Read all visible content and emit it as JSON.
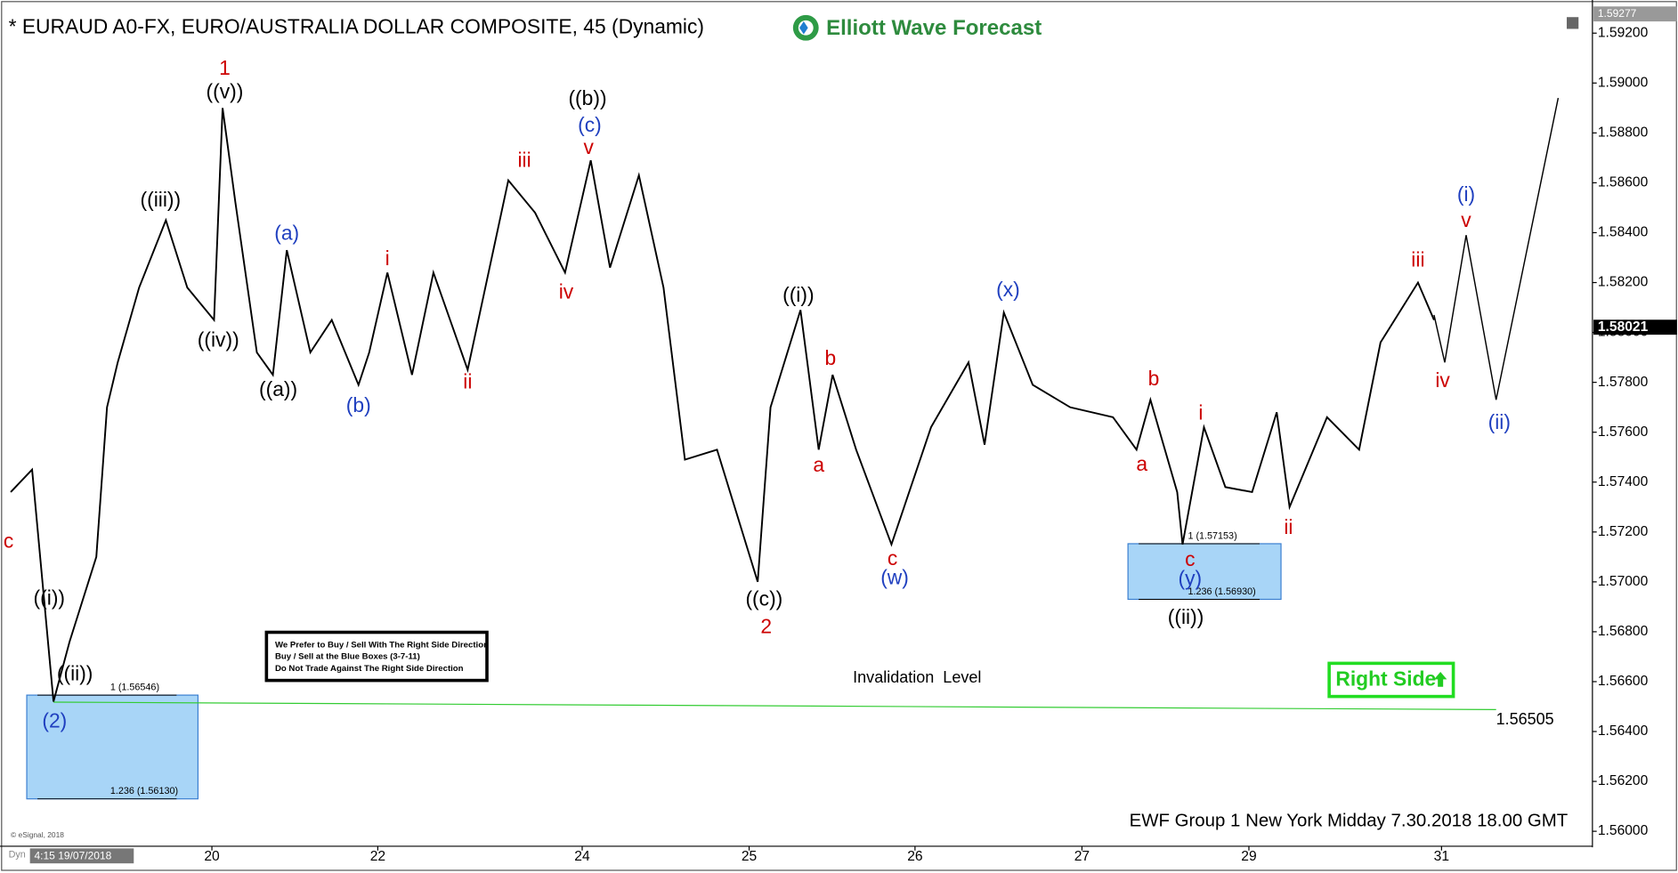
{
  "chart_data": {
    "type": "line",
    "title": "* EURAUD A0-FX, EURO/AUSTRALIA DOLLAR COMPOSITE, 45 (Dynamic)",
    "logo_text": "Elliott Wave Forecast",
    "footer": "EWF Group 1 New York Midday 7.30.2018 18.00 GMT",
    "copyright": "© eSignal, 2018",
    "cursor_label": "4:15 19/07/2018",
    "corner_label": "Dyn",
    "note_lines": [
      "We Prefer to Buy / Sell With The Right Side Direction",
      "Buy / Sell at the Blue Boxes (3-7-11)",
      "Do Not Trade Against The Right Side Direction"
    ],
    "right_side_label": "Right Side",
    "invalidation": {
      "text": "Invalidation  Level",
      "value": 1.56505,
      "color": "#33cc33"
    },
    "price_tags": [
      {
        "value": 1.59277,
        "label": "1.59277"
      },
      {
        "value": 1.58021,
        "label": "1.58021"
      }
    ],
    "zones": [
      {
        "top": 1.56546,
        "top_label": "1 (1.56546)",
        "bottom": 1.5613,
        "bottom_label": "1.236 (1.56130)"
      },
      {
        "top": 1.57153,
        "top_label": "1 (1.57153)",
        "bottom": 1.5693,
        "bottom_label": "1.236 (1.56930)"
      }
    ],
    "zone_color": "#a8d5f7",
    "series": [
      {
        "color": "#000000",
        "x": [
          10,
          30,
          50,
          65,
          90,
          100,
          110,
          130,
          155,
          175,
          200,
          208,
          220,
          240,
          255,
          268,
          290,
          310,
          335,
          345,
          362,
          385,
          405,
          437,
          475,
          500,
          528,
          552,
          570,
          597,
          620,
          640,
          670,
          708,
          720,
          748,
          765,
          778,
          800,
          833,
          870,
          905,
          920,
          938,
          965,
          1000,
          1040,
          1062,
          1075,
          1100,
          1105,
          1125,
          1145,
          1170,
          1193,
          1205,
          1240,
          1270,
          1290,
          1325,
          1340
        ],
        "values": [
          1.5736,
          1.5745,
          1.5652,
          1.5676,
          1.571,
          1.577,
          1.5788,
          1.5818,
          1.5845,
          1.5818,
          1.5805,
          1.589,
          1.5852,
          1.5792,
          1.5783,
          1.5833,
          1.5792,
          1.5805,
          1.5779,
          1.5792,
          1.5824,
          1.5783,
          1.5824,
          1.5785,
          1.5861,
          1.5848,
          1.5824,
          1.5869,
          1.5826,
          1.5863,
          1.5818,
          1.5749,
          1.5753,
          1.57,
          1.577,
          1.5809,
          1.5753,
          1.5783,
          1.5753,
          1.5715,
          1.5762,
          1.5788,
          1.5755,
          1.5808,
          1.5779,
          1.577,
          1.5766,
          1.5753,
          1.5773,
          1.5736,
          1.5715,
          1.5762,
          1.5738,
          1.5736,
          1.5768,
          1.573,
          1.5766,
          1.5753,
          1.5796,
          1.582,
          1.5805
        ]
      },
      {
        "color": "#000000",
        "x": [
          1340,
          1350,
          1370,
          1398,
          1456
        ],
        "values": [
          1.5807,
          1.5788,
          1.5839,
          1.5773,
          1.5894
        ]
      }
    ],
    "annotations": [
      {
        "text": "c",
        "color": "#cc0000"
      },
      {
        "text": "1",
        "color": "#cc0000"
      },
      {
        "text": "((v))",
        "color": "#000000"
      },
      {
        "text": "((iii))",
        "color": "#000000"
      },
      {
        "text": "((iv))",
        "color": "#000000"
      },
      {
        "text": "(a)",
        "color": "#1f3fbf"
      },
      {
        "text": "((a))",
        "color": "#000000"
      },
      {
        "text": "(b)",
        "color": "#1f3fbf"
      },
      {
        "text": "i",
        "color": "#cc0000"
      },
      {
        "text": "ii",
        "color": "#cc0000"
      },
      {
        "text": "iii",
        "color": "#cc0000"
      },
      {
        "text": "((b))",
        "color": "#000000"
      },
      {
        "text": "(c)",
        "color": "#1f3fbf"
      },
      {
        "text": "v",
        "color": "#cc0000"
      },
      {
        "text": "iv",
        "color": "#cc0000"
      },
      {
        "text": "((i))",
        "color": "#000000"
      },
      {
        "text": "((ii))",
        "color": "#000000"
      },
      {
        "text": "(2)",
        "color": "#1f3fbf"
      },
      {
        "text": "((c))",
        "color": "#000000"
      },
      {
        "text": "2",
        "color": "#cc0000"
      },
      {
        "text": "((i))",
        "color": "#000000"
      },
      {
        "text": "b",
        "color": "#cc0000"
      },
      {
        "text": "a",
        "color": "#cc0000"
      },
      {
        "text": "c",
        "color": "#cc0000"
      },
      {
        "text": "(w)",
        "color": "#1f3fbf"
      },
      {
        "text": "(x)",
        "color": "#1f3fbf"
      },
      {
        "text": "b",
        "color": "#cc0000"
      },
      {
        "text": "a",
        "color": "#cc0000"
      },
      {
        "text": "i",
        "color": "#cc0000"
      },
      {
        "text": "c",
        "color": "#cc0000"
      },
      {
        "text": "(y)",
        "color": "#1f3fbf"
      },
      {
        "text": "((ii))",
        "color": "#000000"
      },
      {
        "text": "ii",
        "color": "#cc0000"
      },
      {
        "text": "iii",
        "color": "#cc0000"
      },
      {
        "text": "iv",
        "color": "#cc0000"
      },
      {
        "text": "(i)",
        "color": "#1f3fbf"
      },
      {
        "text": "v",
        "color": "#cc0000"
      },
      {
        "text": "(ii)",
        "color": "#1f3fbf"
      }
    ],
    "xlim": [
      8,
      1488
    ],
    "xticks": [
      {
        "value": 198,
        "label": "20"
      },
      {
        "value": 353,
        "label": "22"
      },
      {
        "value": 544,
        "label": "24"
      },
      {
        "value": 700,
        "label": "25"
      },
      {
        "value": 855,
        "label": "26"
      },
      {
        "value": 1011,
        "label": "27"
      },
      {
        "value": 1167,
        "label": "29"
      },
      {
        "value": 1347,
        "label": "31"
      }
    ],
    "ylim": [
      1.5594,
      1.5929
    ],
    "yticks": [
      {
        "value": 1.56,
        "label": "1.56000"
      },
      {
        "value": 1.562,
        "label": "1.56200"
      },
      {
        "value": 1.564,
        "label": "1.56400"
      },
      {
        "value": 1.566,
        "label": "1.56600"
      },
      {
        "value": 1.568,
        "label": "1.56800"
      },
      {
        "value": 1.57,
        "label": "1.57000"
      },
      {
        "value": 1.572,
        "label": "1.57200"
      },
      {
        "value": 1.574,
        "label": "1.57400"
      },
      {
        "value": 1.576,
        "label": "1.57600"
      },
      {
        "value": 1.578,
        "label": "1.57800"
      },
      {
        "value": 1.58,
        "label": "1.58000"
      },
      {
        "value": 1.582,
        "label": "1.58200"
      },
      {
        "value": 1.584,
        "label": "1.58400"
      },
      {
        "value": 1.586,
        "label": "1.58600"
      },
      {
        "value": 1.588,
        "label": "1.58800"
      },
      {
        "value": 1.59,
        "label": "1.59000"
      },
      {
        "value": 1.592,
        "label": "1.59200"
      }
    ]
  }
}
